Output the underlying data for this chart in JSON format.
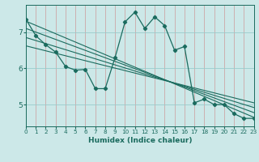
{
  "xlabel": "Humidex (Indice chaleur)",
  "bg_color": "#cce8e8",
  "grid_color": "#99cccc",
  "line_color": "#1a6b5e",
  "xlim": [
    0,
    23
  ],
  "ylim": [
    4.4,
    7.75
  ],
  "xticks": [
    0,
    1,
    2,
    3,
    4,
    5,
    6,
    7,
    8,
    9,
    10,
    11,
    12,
    13,
    14,
    15,
    16,
    17,
    18,
    19,
    20,
    21,
    22,
    23
  ],
  "yticks": [
    5,
    6,
    7
  ],
  "main_series_x": [
    0,
    1,
    2,
    3,
    4,
    5,
    6,
    7,
    8,
    9,
    10,
    11,
    12,
    13,
    14,
    15,
    16,
    17,
    18,
    19,
    20,
    21,
    22,
    23
  ],
  "main_series_y": [
    7.35,
    6.9,
    6.65,
    6.45,
    6.05,
    5.95,
    5.97,
    5.44,
    5.44,
    6.3,
    7.28,
    7.55,
    7.1,
    7.42,
    7.18,
    6.5,
    6.6,
    5.05,
    5.15,
    5.0,
    5.0,
    4.75,
    4.62,
    4.62
  ],
  "reg_lines": [
    [
      7.3,
      4.65
    ],
    [
      7.1,
      4.78
    ],
    [
      6.85,
      4.92
    ],
    [
      6.62,
      5.05
    ]
  ]
}
